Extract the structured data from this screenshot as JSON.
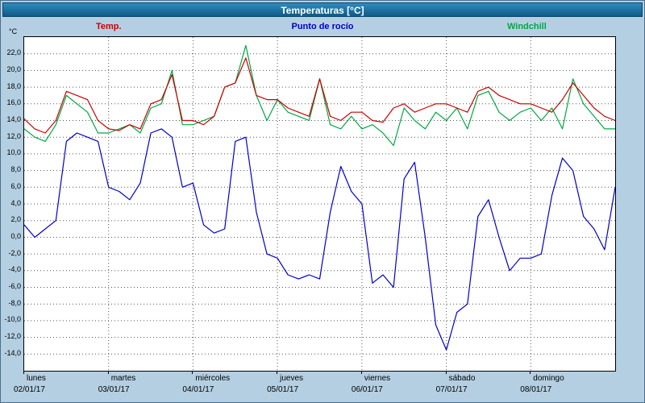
{
  "window": {
    "title": "Temperaturas [°C]"
  },
  "legend": [
    {
      "label": "Temp.",
      "color": "#cc0000"
    },
    {
      "label": "Punto de rocío",
      "color": "#0000cc"
    },
    {
      "label": "Windchill",
      "color": "#00a843"
    }
  ],
  "y_axis_unit": "°C",
  "chart_data": {
    "type": "line",
    "title": "Temperaturas [°C]",
    "ylabel": "°C",
    "xlabel": "",
    "ylim": [
      -16,
      24
    ],
    "grid": true,
    "legend_position": "top",
    "y_tick_labels": [
      "22,0",
      "20,0",
      "18,0",
      "16,0",
      "14,0",
      "12,0",
      "10,0",
      "8,0",
      "6,0",
      "4,0",
      "2,0",
      "0,0",
      "-2,0",
      "-4,0",
      "-6,0",
      "-8,0",
      "-10,0",
      "-12,0",
      "-14,0"
    ],
    "x_days": [
      {
        "name": "lunes",
        "date": "02/01/17"
      },
      {
        "name": "martes",
        "date": "03/01/17"
      },
      {
        "name": "miércoles",
        "date": "04/01/17"
      },
      {
        "name": "jueves",
        "date": "05/01/17"
      },
      {
        "name": "viernes",
        "date": "06/01/17"
      },
      {
        "name": "sábado",
        "date": "07/01/17"
      },
      {
        "name": "domingo",
        "date": "08/01/17"
      }
    ],
    "interval_hours": 3,
    "series": [
      {
        "name": "Temp.",
        "color": "#cc0000",
        "values": [
          14.2,
          13.0,
          12.5,
          14.0,
          17.5,
          17.0,
          16.5,
          14.0,
          13.0,
          12.8,
          13.5,
          13.0,
          16.0,
          16.5,
          19.5,
          14.0,
          14.0,
          13.5,
          14.5,
          18.0,
          18.5,
          21.5,
          17.0,
          16.5,
          16.5,
          15.5,
          15.0,
          14.5,
          19.0,
          14.5,
          14.0,
          15.0,
          15.0,
          14.0,
          13.8,
          15.5,
          16.0,
          15.0,
          15.5,
          16.0,
          16.0,
          15.5,
          15.0,
          17.5,
          18.0,
          17.0,
          16.5,
          16.0,
          16.0,
          15.5,
          15.0,
          16.5,
          18.5,
          17.0,
          15.5,
          14.5,
          14.0
        ]
      },
      {
        "name": "Punto de rocío",
        "color": "#0000cc",
        "values": [
          1.5,
          0.0,
          1.0,
          2.0,
          11.5,
          12.5,
          12.0,
          11.5,
          6.0,
          5.5,
          4.5,
          6.5,
          12.5,
          13.0,
          12.0,
          6.0,
          6.5,
          1.5,
          0.5,
          1.0,
          11.5,
          12.0,
          3.0,
          -2.0,
          -2.5,
          -4.5,
          -5.0,
          -4.5,
          -5.0,
          3.0,
          8.5,
          5.5,
          4.0,
          -5.5,
          -4.5,
          -6.0,
          7.0,
          9.0,
          0.0,
          -10.5,
          -13.5,
          -9.0,
          -8.0,
          2.5,
          4.5,
          0.0,
          -4.0,
          -2.5,
          -2.5,
          -2.0,
          5.0,
          9.5,
          8.0,
          2.5,
          1.0,
          -1.5,
          6.0
        ]
      },
      {
        "name": "Windchill",
        "color": "#00a843",
        "values": [
          13.0,
          12.0,
          11.5,
          13.5,
          17.0,
          16.0,
          15.0,
          12.5,
          12.5,
          13.0,
          13.5,
          12.5,
          15.5,
          16.0,
          20.0,
          13.5,
          13.5,
          14.0,
          14.5,
          18.0,
          18.5,
          23.0,
          17.0,
          14.0,
          16.5,
          15.0,
          14.5,
          14.0,
          19.0,
          13.5,
          13.0,
          14.5,
          13.0,
          13.5,
          12.5,
          11.0,
          15.5,
          14.0,
          13.0,
          15.0,
          14.0,
          15.5,
          13.0,
          17.0,
          17.5,
          15.0,
          14.0,
          15.0,
          15.5,
          14.0,
          15.5,
          13.0,
          19.0,
          16.0,
          14.5,
          13.0,
          13.0
        ]
      }
    ]
  }
}
